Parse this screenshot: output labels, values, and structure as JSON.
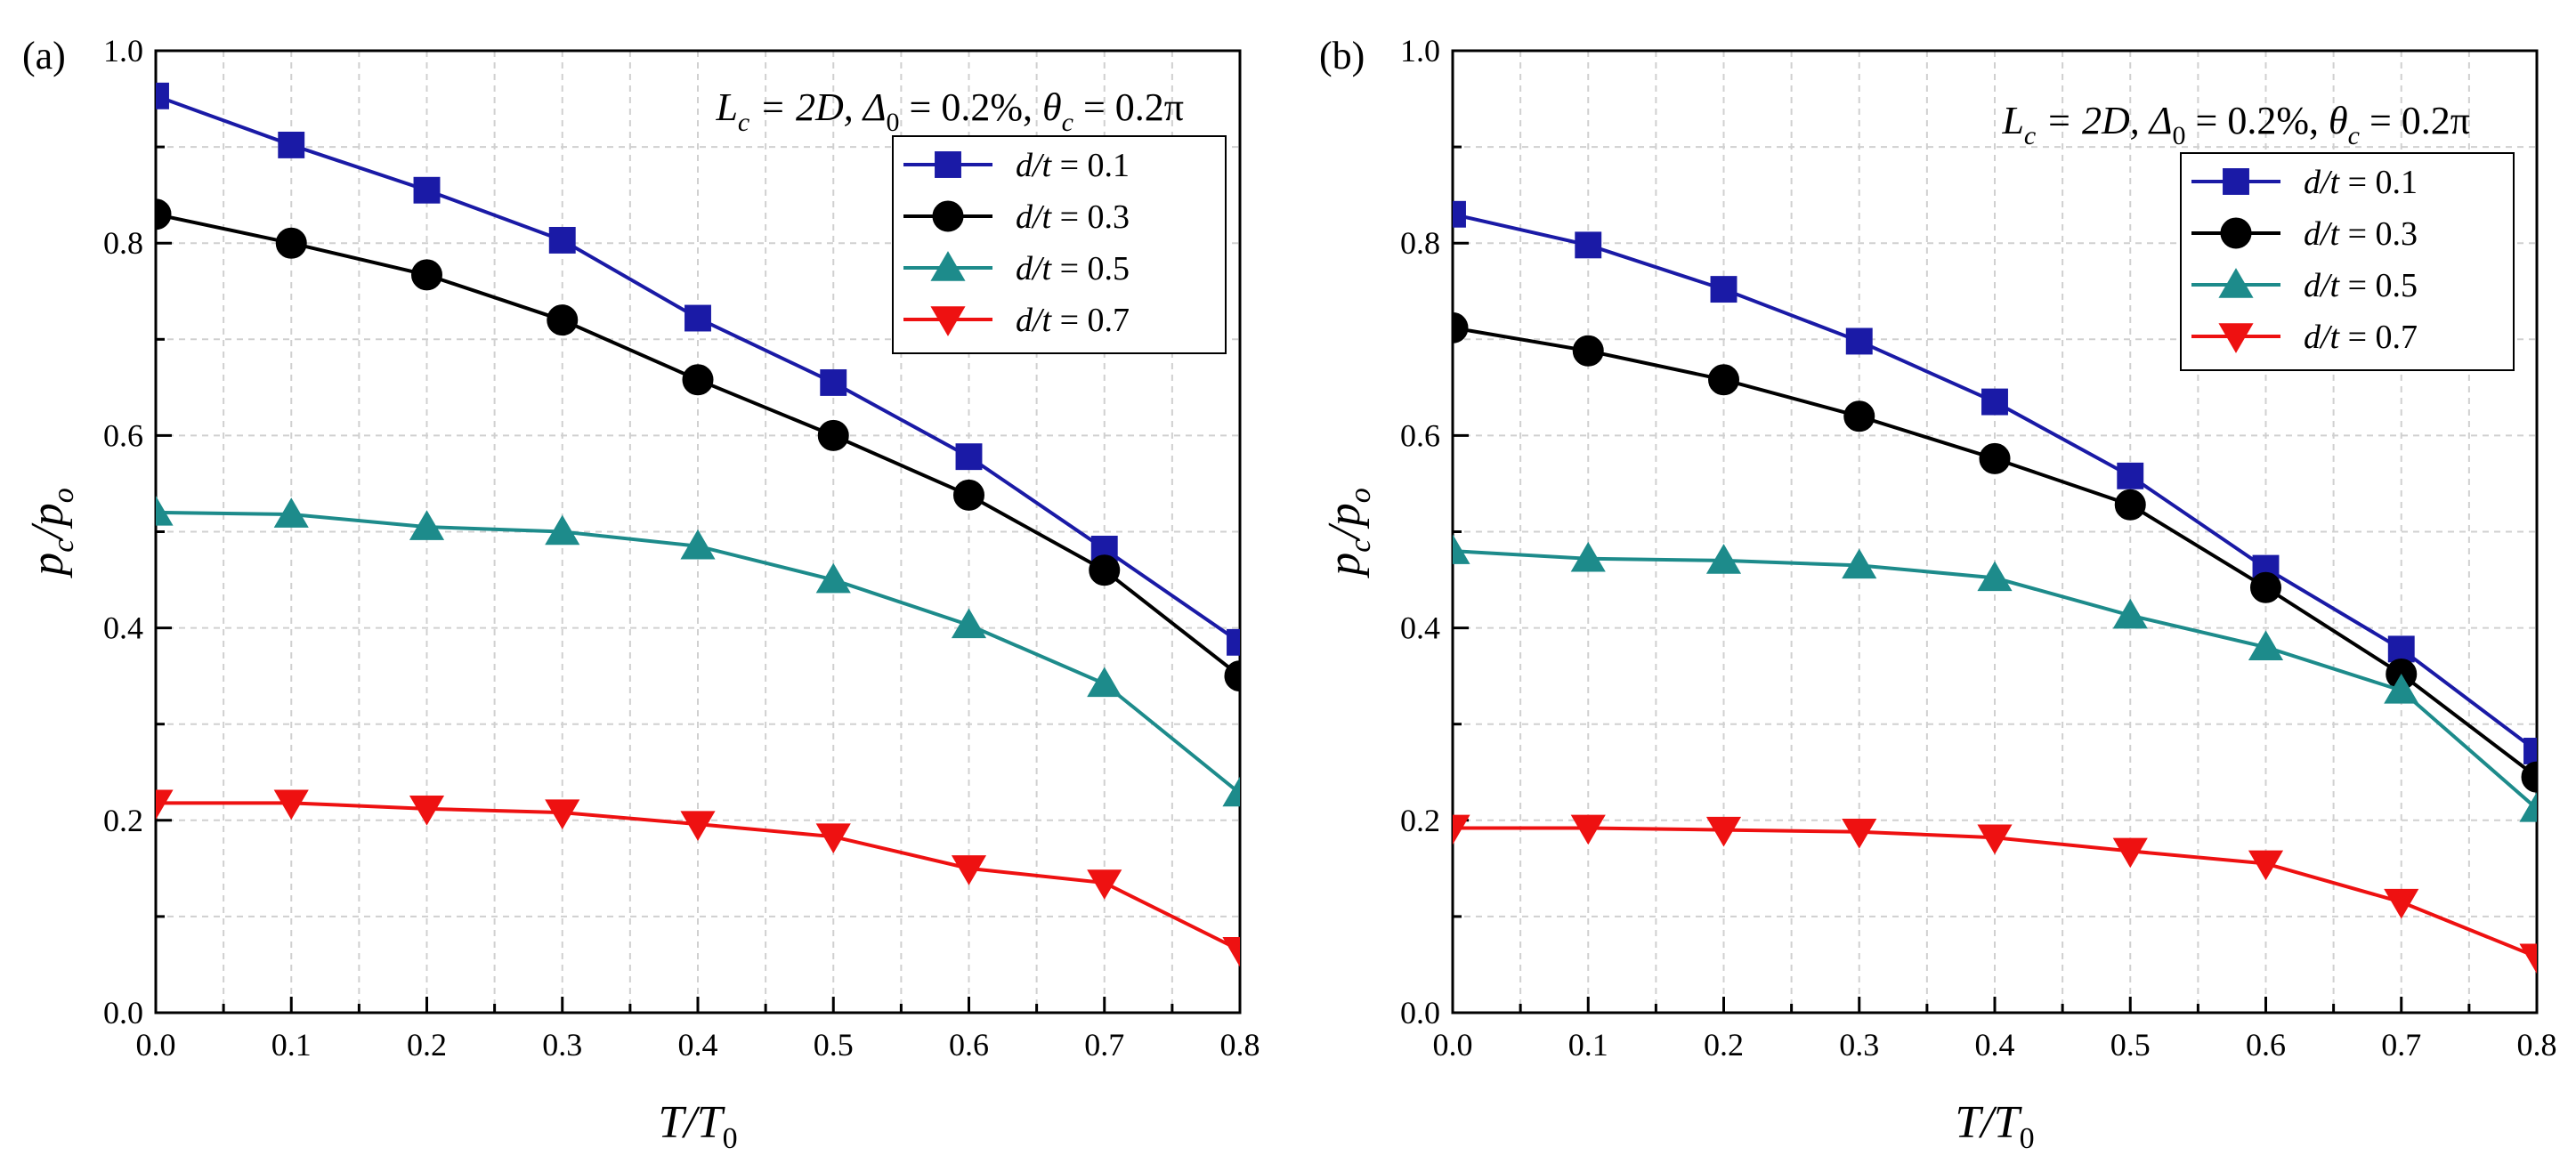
{
  "chart_data": [
    {
      "type": "line",
      "panel_label": "(a)",
      "annotation": {
        "lc_sym": "L",
        "lc_sub": "c",
        "lc_val": " = 2D, ",
        "delta_sym": "Δ",
        "delta_sub": "0",
        "delta_val": " = 0.2%, ",
        "theta_sym": "θ",
        "theta_sub": "c",
        "theta_val": " = 0.2π"
      },
      "xlabel": {
        "main": "T/T",
        "sub": "0"
      },
      "ylabel": {
        "main": "p",
        "sub1": "c",
        "mid": "/p",
        "sub2": "o"
      },
      "xlim": [
        0,
        0.8
      ],
      "ylim": [
        0,
        1.0
      ],
      "xticks": [
        "0.0",
        "0.1",
        "0.2",
        "0.3",
        "0.4",
        "0.5",
        "0.6",
        "0.7",
        "0.8"
      ],
      "yticks": [
        "0.0",
        "0.2",
        "0.4",
        "0.6",
        "0.8",
        "1.0"
      ],
      "grid": true,
      "legend_position": "top-right",
      "x": [
        0,
        0.1,
        0.2,
        0.3,
        0.4,
        0.5,
        0.6,
        0.7,
        0.8
      ],
      "series": [
        {
          "name": "d/t = 0.1",
          "name_italic": "d/t",
          "name_rest": " = 0.1",
          "marker": "square",
          "color": "#1a1aa6",
          "values": [
            0.953,
            0.902,
            0.855,
            0.803,
            0.722,
            0.655,
            0.578,
            0.482,
            0.385
          ]
        },
        {
          "name": "d/t = 0.3",
          "name_italic": "d/t",
          "name_rest": " = 0.3",
          "marker": "circle",
          "color": "#000000",
          "values": [
            0.83,
            0.8,
            0.767,
            0.72,
            0.658,
            0.6,
            0.538,
            0.46,
            0.35
          ]
        },
        {
          "name": "d/t = 0.5",
          "name_italic": "d/t",
          "name_rest": " = 0.5",
          "marker": "triangle-up",
          "color": "#1d8b8b",
          "values": [
            0.52,
            0.518,
            0.505,
            0.5,
            0.485,
            0.45,
            0.403,
            0.342,
            0.228
          ]
        },
        {
          "name": "d/t = 0.7",
          "name_italic": "d/t",
          "name_rest": " = 0.7",
          "marker": "triangle-down",
          "color": "#ee1111",
          "values": [
            0.218,
            0.218,
            0.212,
            0.208,
            0.196,
            0.183,
            0.15,
            0.135,
            0.065
          ]
        }
      ]
    },
    {
      "type": "line",
      "panel_label": "(b)",
      "annotation": {
        "lc_sym": "L",
        "lc_sub": "c",
        "lc_val": " = 2D, ",
        "delta_sym": "Δ",
        "delta_sub": "0",
        "delta_val": " = 0.2%, ",
        "theta_sym": "θ",
        "theta_sub": "c",
        "theta_val": " = 0.2π"
      },
      "xlabel": {
        "main": "T/T",
        "sub": "0"
      },
      "ylabel": {
        "main": "p",
        "sub1": "c",
        "mid": "/p",
        "sub2": "o"
      },
      "xlim": [
        0,
        0.8
      ],
      "ylim": [
        0,
        1.0
      ],
      "xticks": [
        "0.0",
        "0.1",
        "0.2",
        "0.3",
        "0.4",
        "0.5",
        "0.6",
        "0.7",
        "0.8"
      ],
      "yticks": [
        "0.0",
        "0.2",
        "0.4",
        "0.6",
        "0.8",
        "1.0"
      ],
      "grid": true,
      "legend_position": "top-right",
      "x": [
        0,
        0.1,
        0.2,
        0.3,
        0.4,
        0.5,
        0.6,
        0.7,
        0.8
      ],
      "series": [
        {
          "name": "d/t = 0.1",
          "name_italic": "d/t",
          "name_rest": " = 0.1",
          "marker": "square",
          "color": "#1a1aa6",
          "values": [
            0.83,
            0.798,
            0.752,
            0.698,
            0.635,
            0.558,
            0.462,
            0.378,
            0.272
          ]
        },
        {
          "name": "d/t = 0.3",
          "name_italic": "d/t",
          "name_rest": " = 0.3",
          "marker": "circle",
          "color": "#000000",
          "values": [
            0.712,
            0.688,
            0.658,
            0.62,
            0.576,
            0.528,
            0.442,
            0.352,
            0.245
          ]
        },
        {
          "name": "d/t = 0.5",
          "name_italic": "d/t",
          "name_rest": " = 0.5",
          "marker": "triangle-up",
          "color": "#1d8b8b",
          "values": [
            0.48,
            0.472,
            0.47,
            0.465,
            0.452,
            0.413,
            0.38,
            0.335,
            0.212
          ]
        },
        {
          "name": "d/t = 0.7",
          "name_italic": "d/t",
          "name_rest": " = 0.7",
          "marker": "triangle-down",
          "color": "#ee1111",
          "values": [
            0.192,
            0.192,
            0.19,
            0.188,
            0.182,
            0.168,
            0.155,
            0.115,
            0.058
          ]
        }
      ]
    }
  ]
}
